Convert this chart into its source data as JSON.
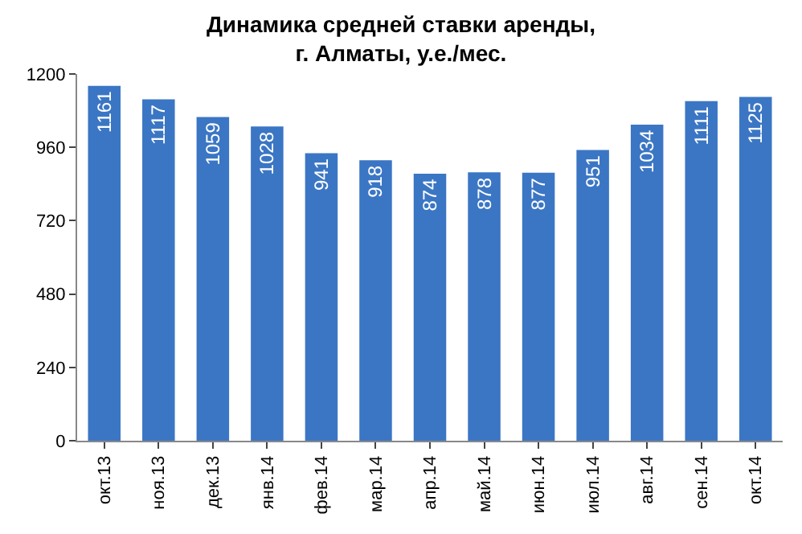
{
  "chart_data": {
    "type": "bar",
    "title": "Динамика средней ставки аренды,\nг. Алматы, у.е./мес.",
    "categories": [
      "окт.13",
      "ноя.13",
      "дек.13",
      "янв.14",
      "фев.14",
      "мар.14",
      "апр.14",
      "май.14",
      "июн.14",
      "июл.14",
      "авг.14",
      "сен.14",
      "окт.14"
    ],
    "values": [
      1161,
      1117,
      1059,
      1028,
      941,
      918,
      874,
      878,
      877,
      951,
      1034,
      1111,
      1125
    ],
    "color": "#3b76c4",
    "ylim": [
      0,
      1200
    ],
    "yticks": [
      0,
      240,
      480,
      720,
      960,
      1200
    ],
    "data_labels": true
  }
}
